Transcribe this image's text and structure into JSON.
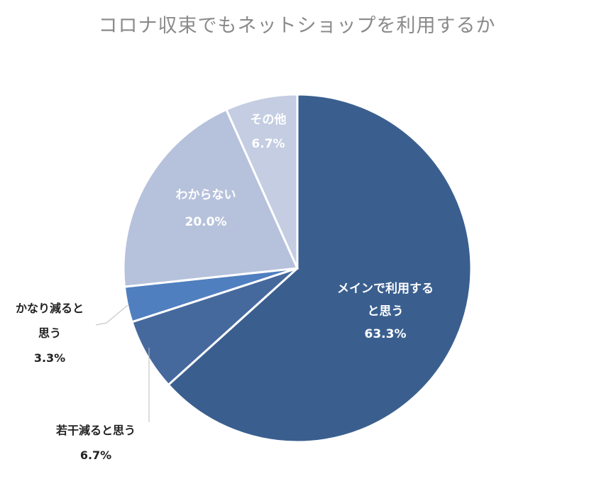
{
  "chart_data": {
    "type": "pie",
    "title": "コロナ収束でもネットショップを利用するか",
    "slices": [
      {
        "label_lines": [
          "メインで利用する",
          "と思う"
        ],
        "value_text": "63.3%",
        "value": 63.3,
        "color": "#3a5f8f"
      },
      {
        "label_lines": [
          "若干減ると思う"
        ],
        "value_text": "6.7%",
        "value": 6.7,
        "color": "#46699d"
      },
      {
        "label_lines": [
          "かなり減ると",
          "思う"
        ],
        "value_text": "3.3%",
        "value": 3.3,
        "color": "#507fbf"
      },
      {
        "label_lines": [
          "わからない"
        ],
        "value_text": "20.0%",
        "value": 20.0,
        "color": "#b6c2dc"
      },
      {
        "label_lines": [
          "その他"
        ],
        "value_text": "6.7%",
        "value": 6.7,
        "color": "#c4cde2"
      }
    ]
  }
}
